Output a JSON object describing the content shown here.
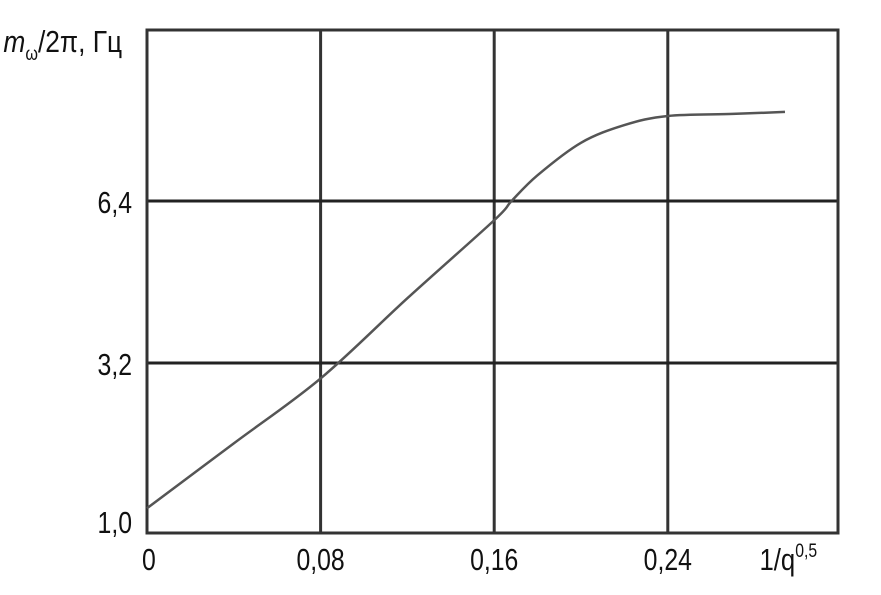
{
  "chart_data": {
    "type": "line",
    "ylabel": "m",
    "ylabel_sub": "ω",
    "ylabel_rest": "/2π, Гц",
    "xlabel": "1/q",
    "xlabel_sup": "0,5",
    "x_ticks": [
      {
        "value": 0,
        "label": "0"
      },
      {
        "value": 0.08,
        "label": "0,08"
      },
      {
        "value": 0.16,
        "label": "0,16"
      },
      {
        "value": 0.24,
        "label": "0,24"
      }
    ],
    "y_ticks": [
      {
        "value": 1.0,
        "label": "1,0"
      },
      {
        "value": 3.2,
        "label": "3,2"
      },
      {
        "value": 6.4,
        "label": "6,4"
      }
    ],
    "xlim": [
      0,
      0.32
    ],
    "ylim": [
      1.0,
      9.8
    ],
    "grid": true,
    "line_color": "#555555",
    "series": [
      {
        "x": [
          0,
          0.04,
          0.08,
          0.12,
          0.16,
          0.168,
          0.18,
          0.2,
          0.22,
          0.24,
          0.27,
          0.294
        ],
        "y": [
          1.32,
          2.16,
          3.0,
          4.48,
          6.02,
          6.4,
          6.91,
          7.55,
          7.9,
          8.08,
          8.12,
          8.16
        ]
      }
    ]
  }
}
